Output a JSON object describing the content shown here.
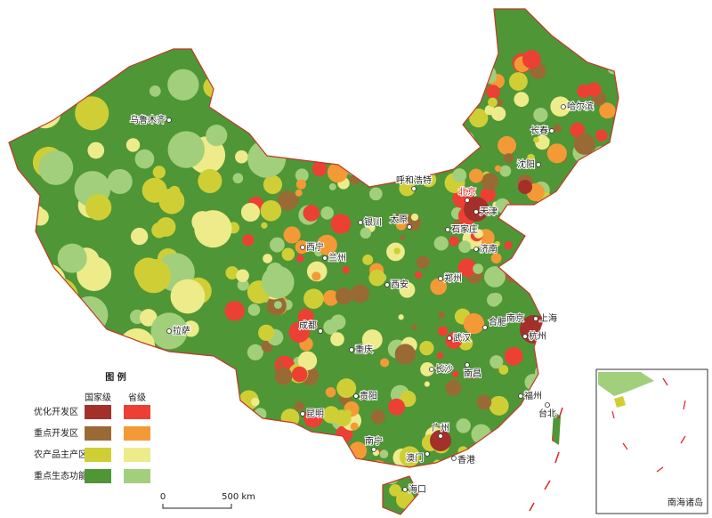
{
  "legend": {
    "title": "图 例",
    "columns": [
      "国家级",
      "省级"
    ],
    "rows": [
      {
        "label": "优化开发区",
        "colors": [
          "#a3312a",
          "#ec4034"
        ]
      },
      {
        "label": "重点开发区",
        "colors": [
          "#9a6a35",
          "#f39a36"
        ]
      },
      {
        "label": "农产品主产区",
        "colors": [
          "#cfcf35",
          "#eeeb8a"
        ]
      },
      {
        "label": "重点生态功能区",
        "colors": [
          "#4f9636",
          "#a2cf7c"
        ]
      }
    ]
  },
  "cities": [
    "乌鲁木齐",
    "哈尔滨",
    "长春",
    "沈阳",
    "呼和浩特",
    "北京",
    "天津",
    "银川",
    "太原",
    "石家庄",
    "西宁",
    "兰州",
    "济南",
    "西安",
    "郑州",
    "南京",
    "上海",
    "合肥",
    "杭州",
    "成都",
    "武汉",
    "拉萨",
    "重庆",
    "长沙",
    "南昌",
    "贵阳",
    "福州",
    "昆明",
    "台北",
    "南宁",
    "广州",
    "澳门",
    "香港",
    "海口"
  ],
  "scale": {
    "start": "0",
    "end": "500 km"
  },
  "inset": {
    "label": "南海诸岛"
  }
}
